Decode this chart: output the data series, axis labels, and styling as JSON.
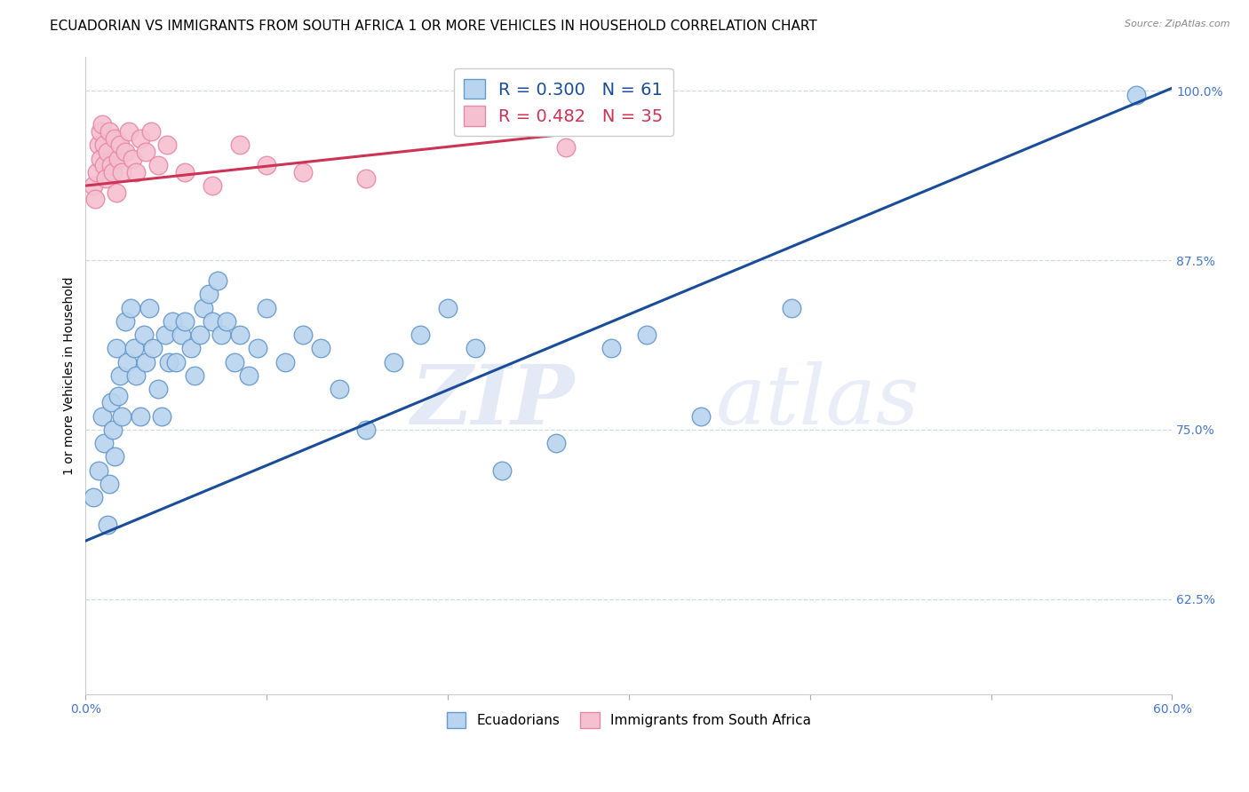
{
  "title": "ECUADORIAN VS IMMIGRANTS FROM SOUTH AFRICA 1 OR MORE VEHICLES IN HOUSEHOLD CORRELATION CHART",
  "source": "Source: ZipAtlas.com",
  "xlabel_blue": "Ecuadorians",
  "xlabel_pink": "Immigrants from South Africa",
  "ylabel": "1 or more Vehicles in Household",
  "xmin": 0.0,
  "xmax": 0.6,
  "ymin": 0.555,
  "ymax": 1.025,
  "yticks": [
    0.625,
    0.75,
    0.875,
    1.0
  ],
  "ytick_labels": [
    "62.5%",
    "75.0%",
    "87.5%",
    "100.0%"
  ],
  "xticks": [
    0.0,
    0.1,
    0.2,
    0.3,
    0.4,
    0.5,
    0.6
  ],
  "xtick_labels": [
    "0.0%",
    "",
    "",
    "",
    "",
    "",
    "60.0%"
  ],
  "R_blue": 0.3,
  "N_blue": 61,
  "R_pink": 0.482,
  "N_pink": 35,
  "blue_color": "#b8d4ee",
  "blue_edge": "#6699cc",
  "pink_color": "#f5c0d0",
  "pink_edge": "#e888a8",
  "trend_blue": "#1a4d99",
  "trend_pink": "#cc3355",
  "blue_trend_x": [
    0.0,
    0.6
  ],
  "blue_trend_y": [
    0.668,
    1.002
  ],
  "pink_trend_x": [
    0.0,
    0.265
  ],
  "pink_trend_y": [
    0.93,
    0.968
  ],
  "blue_scatter_x": [
    0.004,
    0.007,
    0.009,
    0.01,
    0.012,
    0.013,
    0.014,
    0.015,
    0.016,
    0.017,
    0.018,
    0.019,
    0.02,
    0.022,
    0.023,
    0.025,
    0.027,
    0.028,
    0.03,
    0.032,
    0.033,
    0.035,
    0.037,
    0.04,
    0.042,
    0.044,
    0.046,
    0.048,
    0.05,
    0.053,
    0.055,
    0.058,
    0.06,
    0.063,
    0.065,
    0.068,
    0.07,
    0.073,
    0.075,
    0.078,
    0.082,
    0.085,
    0.09,
    0.095,
    0.1,
    0.11,
    0.12,
    0.13,
    0.14,
    0.155,
    0.17,
    0.185,
    0.2,
    0.215,
    0.23,
    0.26,
    0.29,
    0.31,
    0.34,
    0.39,
    0.58
  ],
  "blue_scatter_y": [
    0.7,
    0.72,
    0.76,
    0.74,
    0.68,
    0.71,
    0.77,
    0.75,
    0.73,
    0.81,
    0.775,
    0.79,
    0.76,
    0.83,
    0.8,
    0.84,
    0.81,
    0.79,
    0.76,
    0.82,
    0.8,
    0.84,
    0.81,
    0.78,
    0.76,
    0.82,
    0.8,
    0.83,
    0.8,
    0.82,
    0.83,
    0.81,
    0.79,
    0.82,
    0.84,
    0.85,
    0.83,
    0.86,
    0.82,
    0.83,
    0.8,
    0.82,
    0.79,
    0.81,
    0.84,
    0.8,
    0.82,
    0.81,
    0.78,
    0.75,
    0.8,
    0.82,
    0.84,
    0.81,
    0.72,
    0.74,
    0.81,
    0.82,
    0.76,
    0.84,
    0.997
  ],
  "pink_scatter_x": [
    0.004,
    0.005,
    0.006,
    0.007,
    0.008,
    0.008,
    0.009,
    0.01,
    0.01,
    0.011,
    0.012,
    0.013,
    0.014,
    0.015,
    0.016,
    0.017,
    0.018,
    0.019,
    0.02,
    0.022,
    0.024,
    0.026,
    0.028,
    0.03,
    0.033,
    0.036,
    0.04,
    0.045,
    0.055,
    0.07,
    0.085,
    0.1,
    0.12,
    0.155,
    0.265
  ],
  "pink_scatter_y": [
    0.93,
    0.92,
    0.94,
    0.96,
    0.97,
    0.95,
    0.975,
    0.945,
    0.96,
    0.935,
    0.955,
    0.97,
    0.945,
    0.94,
    0.965,
    0.925,
    0.95,
    0.96,
    0.94,
    0.955,
    0.97,
    0.95,
    0.94,
    0.965,
    0.955,
    0.97,
    0.945,
    0.96,
    0.94,
    0.93,
    0.96,
    0.945,
    0.94,
    0.935,
    0.958
  ],
  "watermark_zip": "ZIP",
  "watermark_atlas": "atlas",
  "background_color": "#ffffff",
  "grid_color": "#d0d8e8",
  "title_fontsize": 11,
  "axis_label_fontsize": 10,
  "tick_fontsize": 10,
  "legend_fontsize": 14
}
